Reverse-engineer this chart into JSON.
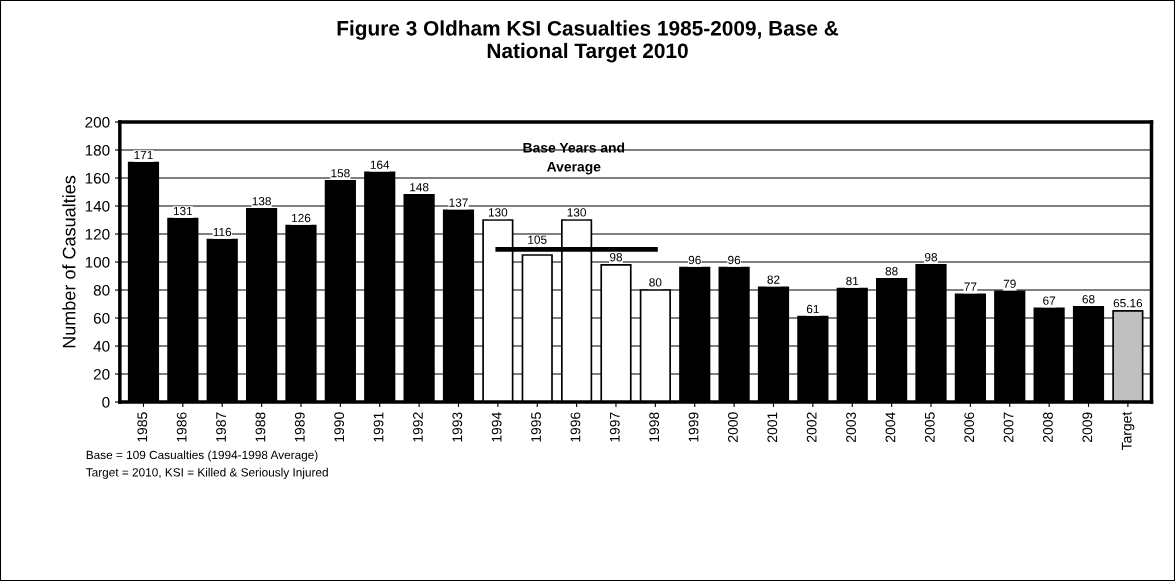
{
  "chart_data": {
    "type": "bar",
    "title": "Figure 3 Oldham KSI Casualties 1985-2009, Base &\nNational Target 2010",
    "ylabel": "Number of Casualties",
    "categories": [
      "1985",
      "1986",
      "1987",
      "1988",
      "1989",
      "1990",
      "1991",
      "1992",
      "1993",
      "1994",
      "1995",
      "1996",
      "1997",
      "1998",
      "1999",
      "2000",
      "2001",
      "2002",
      "2003",
      "2004",
      "2005",
      "2006",
      "2007",
      "2008",
      "2009",
      "Target"
    ],
    "series": [
      {
        "values": [
          171,
          131,
          116,
          138,
          126,
          158,
          164,
          148,
          137,
          130,
          105,
          130,
          98,
          80,
          96,
          96,
          82,
          61,
          81,
          88,
          98,
          77,
          79,
          67,
          68,
          65.16
        ],
        "colors": [
          "#000000",
          "#000000",
          "#000000",
          "#000000",
          "#000000",
          "#000000",
          "#000000",
          "#000000",
          "#000000",
          "#ffffff",
          "#ffffff",
          "#ffffff",
          "#ffffff",
          "#ffffff",
          "#000000",
          "#000000",
          "#000000",
          "#000000",
          "#000000",
          "#000000",
          "#000000",
          "#000000",
          "#000000",
          "#000000",
          "#000000",
          "#c0c0c0"
        ],
        "value_labels": [
          "171",
          "131",
          "116",
          "138",
          "126",
          "158",
          "164",
          "148",
          "137",
          "130",
          "105",
          "130",
          "98",
          "80",
          "96",
          "96",
          "82",
          "61",
          "81",
          "88",
          "98",
          "77",
          "79",
          "67",
          "68",
          "65.16"
        ]
      },
      {
        "type": "line",
        "color": "#000000",
        "values": [
          null,
          null,
          null,
          null,
          null,
          null,
          null,
          null,
          null,
          109,
          109,
          109,
          109,
          109,
          null,
          null,
          null,
          null,
          null,
          null,
          null,
          null,
          null,
          null,
          null,
          null
        ]
      }
    ],
    "ylim": [
      0,
      200
    ],
    "yticks": [
      0,
      20,
      40,
      60,
      80,
      100,
      120,
      140,
      160,
      180,
      200
    ],
    "grid": "y",
    "annotations": [
      "Base Years and\nAverage",
      "Base = 109 Casualties (1994-1998 Average)",
      "Target = 2010, KSI = Killed & Seriously Injured"
    ]
  }
}
